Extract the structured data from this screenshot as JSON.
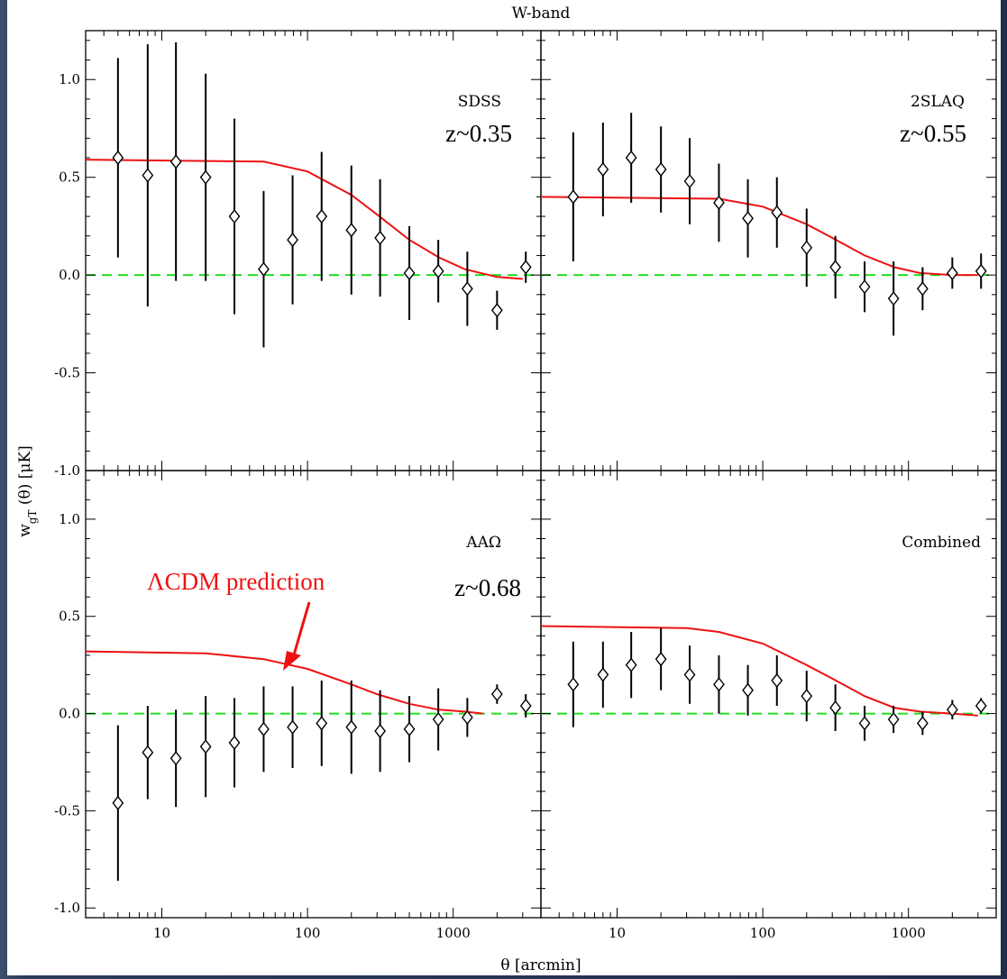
{
  "figure": {
    "top_title": "W-band",
    "xlabel": "θ [arcmin]",
    "ylabel": "w",
    "ylabel_sub": "gT",
    "ylabel_rest": " (θ) [μK]",
    "annotation": "ΛCDM prediction",
    "colors": {
      "model": "#ee1111",
      "zero_line": "#22dd22",
      "data": "#000000"
    }
  },
  "chart_data": [
    {
      "type": "scatter",
      "panel": "SDSS",
      "label": "SDSS",
      "redshift": "z~0.35",
      "xscale": "log",
      "xlim": [
        3,
        4000
      ],
      "ylim": [
        -1.0,
        1.25
      ],
      "x": [
        5,
        8,
        12.5,
        20,
        31.5,
        50,
        79,
        125,
        200,
        315,
        500,
        790,
        1250,
        2000,
        3150
      ],
      "y": [
        0.6,
        0.51,
        0.58,
        0.5,
        0.3,
        0.03,
        0.18,
        0.3,
        0.23,
        0.19,
        0.01,
        0.02,
        -0.07,
        -0.18,
        0.04
      ],
      "yerr": [
        0.51,
        0.67,
        0.61,
        0.53,
        0.5,
        0.4,
        0.33,
        0.33,
        0.33,
        0.3,
        0.24,
        0.16,
        0.19,
        0.1,
        0.08
      ],
      "model": {
        "x": [
          3,
          50,
          100,
          200,
          300,
          500,
          800,
          1200,
          2000,
          3000
        ],
        "y": [
          0.59,
          0.58,
          0.53,
          0.41,
          0.31,
          0.18,
          0.09,
          0.03,
          -0.01,
          -0.02
        ]
      }
    },
    {
      "type": "scatter",
      "panel": "2SLAQ",
      "label": "2SLAQ",
      "redshift": "z~0.55",
      "xscale": "log",
      "xlim": [
        3,
        4000
      ],
      "ylim": [
        -1.0,
        1.25
      ],
      "x": [
        5,
        8,
        12.5,
        20,
        31.5,
        50,
        79,
        125,
        200,
        315,
        500,
        790,
        1250,
        2000,
        3150
      ],
      "y": [
        0.4,
        0.54,
        0.6,
        0.54,
        0.48,
        0.37,
        0.29,
        0.32,
        0.14,
        0.04,
        -0.06,
        -0.12,
        -0.07,
        0.01,
        0.02
      ],
      "yerr": [
        0.33,
        0.24,
        0.23,
        0.22,
        0.22,
        0.2,
        0.2,
        0.18,
        0.2,
        0.16,
        0.13,
        0.19,
        0.11,
        0.08,
        0.09
      ],
      "model": {
        "x": [
          3,
          50,
          100,
          200,
          300,
          500,
          800,
          1200,
          2000,
          3000
        ],
        "y": [
          0.4,
          0.39,
          0.35,
          0.26,
          0.19,
          0.1,
          0.04,
          0.01,
          0.0,
          0.0
        ]
      }
    },
    {
      "type": "scatter",
      "panel": "AAΩ",
      "label": "AAΩ",
      "redshift": "z~0.68",
      "xscale": "log",
      "xlim": [
        3,
        4000
      ],
      "ylim": [
        -1.05,
        1.25
      ],
      "x": [
        5,
        8,
        12.5,
        20,
        31.5,
        50,
        79,
        125,
        200,
        315,
        500,
        790,
        1250,
        2000,
        3150
      ],
      "y": [
        -0.46,
        -0.2,
        -0.23,
        -0.17,
        -0.15,
        -0.08,
        -0.07,
        -0.05,
        -0.07,
        -0.09,
        -0.08,
        -0.03,
        -0.02,
        0.1,
        0.04
      ],
      "yerr": [
        0.4,
        0.24,
        0.25,
        0.26,
        0.23,
        0.22,
        0.21,
        0.22,
        0.24,
        0.21,
        0.17,
        0.16,
        0.1,
        0.05,
        0.06
      ],
      "model": {
        "x": [
          3,
          20,
          50,
          100,
          200,
          300,
          500,
          800,
          1200,
          1600
        ],
        "y": [
          0.32,
          0.31,
          0.28,
          0.23,
          0.15,
          0.1,
          0.05,
          0.02,
          0.01,
          0.0
        ]
      }
    },
    {
      "type": "scatter",
      "panel": "Combined",
      "label": "Combined",
      "redshift": "",
      "xscale": "log",
      "xlim": [
        3,
        4000
      ],
      "ylim": [
        -1.05,
        1.25
      ],
      "x": [
        5,
        8,
        12.5,
        20,
        31.5,
        50,
        79,
        125,
        200,
        315,
        500,
        790,
        1250,
        2000,
        3150
      ],
      "y": [
        0.15,
        0.2,
        0.25,
        0.28,
        0.2,
        0.15,
        0.12,
        0.17,
        0.09,
        0.03,
        -0.05,
        -0.03,
        -0.05,
        0.02,
        0.04
      ],
      "yerr": [
        0.22,
        0.17,
        0.17,
        0.16,
        0.15,
        0.15,
        0.13,
        0.13,
        0.13,
        0.12,
        0.09,
        0.07,
        0.06,
        0.05,
        0.04
      ],
      "model": {
        "x": [
          3,
          30,
          50,
          100,
          200,
          300,
          500,
          800,
          1200,
          2000,
          3000
        ],
        "y": [
          0.45,
          0.44,
          0.42,
          0.36,
          0.25,
          0.18,
          0.09,
          0.03,
          0.01,
          0.0,
          -0.01
        ]
      }
    }
  ]
}
